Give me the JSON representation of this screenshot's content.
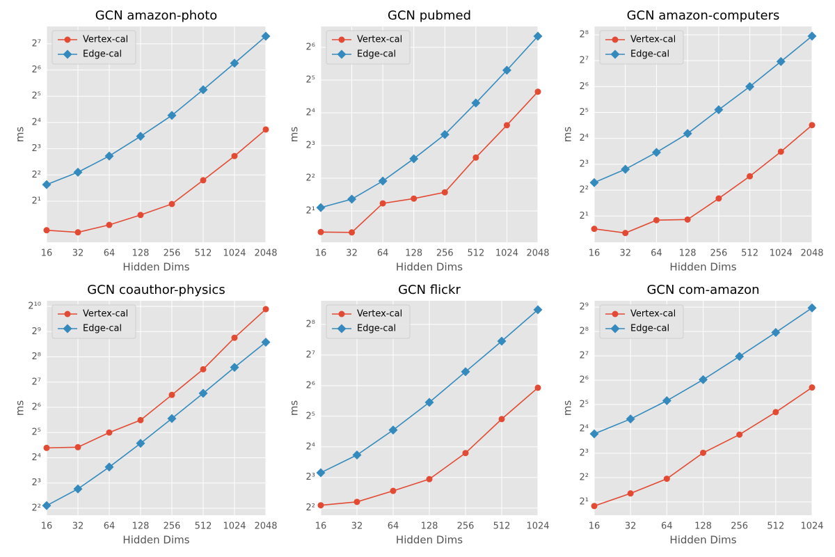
{
  "chart_data": [
    {
      "type": "line",
      "title": "GCN amazon-photo",
      "xlabel": "Hidden Dims",
      "ylabel": "ms",
      "xscale": "log2",
      "yscale": "log2",
      "grid": true,
      "legend": "upper left",
      "x": [
        16,
        32,
        64,
        128,
        256,
        512,
        1024,
        2048
      ],
      "xlim": [
        16,
        2048
      ],
      "xticks": [
        16,
        32,
        64,
        128,
        256,
        512,
        1024,
        2048
      ],
      "ylim": [
        0.676,
        202
      ],
      "yticks": [
        {
          "value": 2,
          "label": "2¹"
        },
        {
          "value": 4,
          "label": "2²"
        },
        {
          "value": 8,
          "label": "2³"
        },
        {
          "value": 16,
          "label": "2⁴"
        },
        {
          "value": 32,
          "label": "2⁵"
        },
        {
          "value": 64,
          "label": "2⁶"
        },
        {
          "value": 128,
          "label": "2⁷"
        }
      ],
      "series": [
        {
          "name": "Vertex-cal",
          "color": "#E24A33",
          "marker": "circle",
          "values": [
            0.93,
            0.88,
            1.07,
            1.39,
            1.86,
            3.48,
            6.6,
            13.3
          ]
        },
        {
          "name": "Edge-cal",
          "color": "#348ABD",
          "marker": "diamond",
          "values": [
            3.1,
            4.3,
            6.6,
            11.1,
            19.3,
            38,
            76.6,
            156
          ]
        }
      ]
    },
    {
      "type": "line",
      "title": "GCN pubmed",
      "xlabel": "Hidden Dims",
      "ylabel": "ms",
      "xscale": "log2",
      "yscale": "log2",
      "grid": true,
      "legend": "upper left",
      "x": [
        16,
        32,
        64,
        128,
        256,
        512,
        1024,
        2048
      ],
      "xlim": [
        16,
        2048
      ],
      "xticks": [
        16,
        32,
        64,
        128,
        256,
        512,
        1024,
        2048
      ],
      "ylim": [
        1.03,
        99.6
      ],
      "yticks": [
        {
          "value": 2,
          "label": "2¹"
        },
        {
          "value": 4,
          "label": "2²"
        },
        {
          "value": 8,
          "label": "2³"
        },
        {
          "value": 16,
          "label": "2⁴"
        },
        {
          "value": 32,
          "label": "2⁵"
        },
        {
          "value": 64,
          "label": "2⁶"
        }
      ],
      "series": [
        {
          "name": "Vertex-cal",
          "color": "#E24A33",
          "marker": "circle",
          "values": [
            1.28,
            1.27,
            2.35,
            2.6,
            2.97,
            6.2,
            12.3,
            25
          ]
        },
        {
          "name": "Edge-cal",
          "color": "#348ABD",
          "marker": "diamond",
          "values": [
            2.15,
            2.57,
            3.77,
            6.05,
            10.1,
            19.7,
            39.4,
            81
          ]
        }
      ]
    },
    {
      "type": "line",
      "title": "GCN amazon-computers",
      "xlabel": "Hidden Dims",
      "ylabel": "ms",
      "xscale": "log2",
      "yscale": "log2",
      "grid": true,
      "legend": "upper left",
      "x": [
        16,
        32,
        64,
        128,
        256,
        512,
        1024,
        2048
      ],
      "xlim": [
        16,
        2048
      ],
      "xticks": [
        16,
        32,
        64,
        128,
        256,
        512,
        1024,
        2048
      ],
      "ylim": [
        0.99,
        320
      ],
      "yticks": [
        {
          "value": 2,
          "label": "2¹"
        },
        {
          "value": 4,
          "label": "2²"
        },
        {
          "value": 8,
          "label": "2³"
        },
        {
          "value": 16,
          "label": "2⁴"
        },
        {
          "value": 32,
          "label": "2⁵"
        },
        {
          "value": 64,
          "label": "2⁶"
        },
        {
          "value": 128,
          "label": "2⁷"
        },
        {
          "value": 256,
          "label": "2⁸"
        }
      ],
      "series": [
        {
          "name": "Vertex-cal",
          "color": "#E24A33",
          "marker": "circle",
          "values": [
            1.42,
            1.27,
            1.79,
            1.82,
            3.2,
            5.8,
            11.2,
            22.8
          ]
        },
        {
          "name": "Edge-cal",
          "color": "#348ABD",
          "marker": "diamond",
          "values": [
            4.9,
            7,
            11,
            18.2,
            34.4,
            64,
            125,
            247
          ]
        }
      ]
    },
    {
      "type": "line",
      "title": "GCN coauthor-physics",
      "xlabel": "Hidden Dims",
      "ylabel": "ms",
      "xscale": "log2",
      "yscale": "log2",
      "grid": true,
      "legend": "upper left",
      "x": [
        16,
        32,
        64,
        128,
        256,
        512,
        1024,
        2048
      ],
      "xlim": [
        16,
        2048
      ],
      "xticks": [
        16,
        32,
        64,
        128,
        256,
        512,
        1024,
        2048
      ],
      "ylim": [
        3.3,
        1195
      ],
      "yticks": [
        {
          "value": 4,
          "label": "2²"
        },
        {
          "value": 8,
          "label": "2³"
        },
        {
          "value": 16,
          "label": "2⁴"
        },
        {
          "value": 32,
          "label": "2⁵"
        },
        {
          "value": 64,
          "label": "2⁶"
        },
        {
          "value": 128,
          "label": "2⁷"
        },
        {
          "value": 256,
          "label": "2⁸"
        },
        {
          "value": 512,
          "label": "2⁹"
        },
        {
          "value": 1024,
          "label": "2¹⁰"
        }
      ],
      "series": [
        {
          "name": "Vertex-cal",
          "color": "#E24A33",
          "marker": "circle",
          "values": [
            21,
            21.4,
            32,
            45,
            90,
            182,
            433,
            949
          ]
        },
        {
          "name": "Edge-cal",
          "color": "#348ABD",
          "marker": "diamond",
          "values": [
            4.3,
            6.8,
            12.4,
            23.8,
            47,
            94,
            192,
            383
          ]
        }
      ]
    },
    {
      "type": "line",
      "title": "GCN flickr",
      "xlabel": "Hidden Dims",
      "ylabel": "ms",
      "xscale": "log2",
      "yscale": "log2",
      "grid": true,
      "legend": "upper left",
      "x": [
        16,
        32,
        64,
        128,
        256,
        512,
        1024
      ],
      "xlim": [
        16,
        1024
      ],
      "xticks": [
        16,
        32,
        64,
        128,
        256,
        512,
        1024
      ],
      "ylim": [
        3.4,
        437
      ],
      "yticks": [
        {
          "value": 4,
          "label": "2²"
        },
        {
          "value": 8,
          "label": "2³"
        },
        {
          "value": 16,
          "label": "2⁴"
        },
        {
          "value": 32,
          "label": "2⁵"
        },
        {
          "value": 64,
          "label": "2⁶"
        },
        {
          "value": 128,
          "label": "2⁷"
        },
        {
          "value": 256,
          "label": "2⁸"
        }
      ],
      "series": [
        {
          "name": "Vertex-cal",
          "color": "#E24A33",
          "marker": "circle",
          "values": [
            4.26,
            4.6,
            5.9,
            7.7,
            13.9,
            30,
            61
          ]
        },
        {
          "name": "Edge-cal",
          "color": "#348ABD",
          "marker": "diamond",
          "values": [
            8.9,
            13.3,
            23.4,
            43.8,
            87.6,
            175,
            357
          ]
        }
      ]
    },
    {
      "type": "line",
      "title": "GCN com-amazon",
      "xlabel": "Hidden Dims",
      "ylabel": "ms",
      "xscale": "log2",
      "yscale": "log2",
      "grid": true,
      "legend": "upper left",
      "x": [
        16,
        32,
        64,
        128,
        256,
        512,
        1024
      ],
      "xlim": [
        16,
        1024
      ],
      "xticks": [
        16,
        32,
        64,
        128,
        256,
        512,
        1024
      ],
      "ylim": [
        1.37,
        614
      ],
      "yticks": [
        {
          "value": 2,
          "label": "2¹"
        },
        {
          "value": 4,
          "label": "2²"
        },
        {
          "value": 8,
          "label": "2³"
        },
        {
          "value": 16,
          "label": "2⁴"
        },
        {
          "value": 32,
          "label": "2⁵"
        },
        {
          "value": 64,
          "label": "2⁶"
        },
        {
          "value": 128,
          "label": "2⁷"
        },
        {
          "value": 256,
          "label": "2⁸"
        },
        {
          "value": 512,
          "label": "2⁹"
        }
      ],
      "series": [
        {
          "name": "Vertex-cal",
          "color": "#E24A33",
          "marker": "circle",
          "values": [
            1.78,
            2.55,
            3.87,
            8.1,
            13.6,
            25.8,
            52
          ]
        },
        {
          "name": "Edge-cal",
          "color": "#348ABD",
          "marker": "diamond",
          "values": [
            13.9,
            21.2,
            35.7,
            65,
            126,
            249,
            501
          ]
        }
      ]
    }
  ]
}
